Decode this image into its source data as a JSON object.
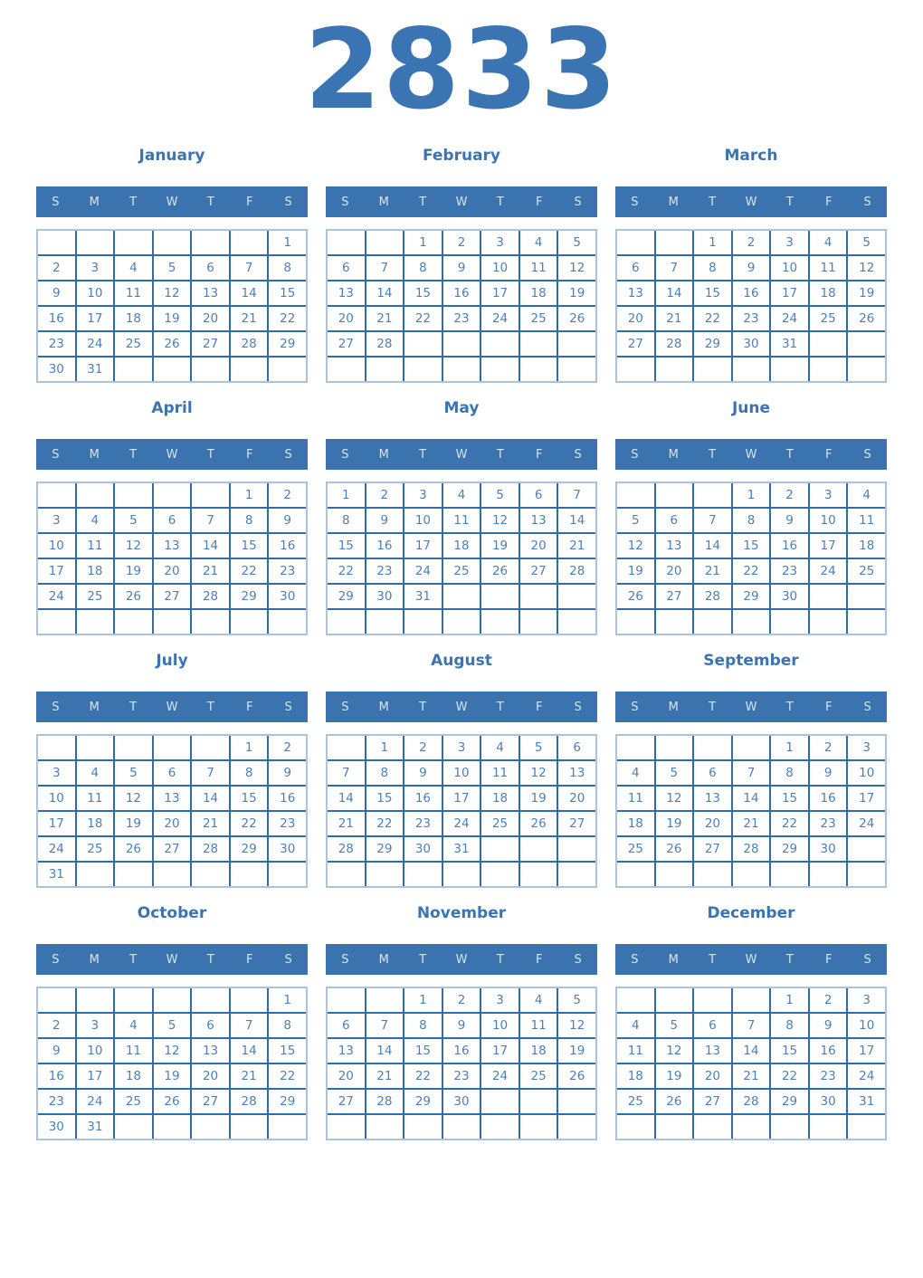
{
  "year": "2833",
  "weekday_headers": [
    "S",
    "M",
    "T",
    "W",
    "T",
    "F",
    "S"
  ],
  "colors": {
    "accent": "#3a74b2",
    "header_bg": "#3a73ad",
    "header_text": "#d9e4f1",
    "day_text": "#4c80b6",
    "grid_line": "#2f6ca8",
    "grid_outline": "#a9c4db"
  },
  "months": [
    {
      "name": "January",
      "weeks": [
        [
          "",
          "",
          "",
          "",
          "",
          "",
          "1"
        ],
        [
          "2",
          "3",
          "4",
          "5",
          "6",
          "7",
          "8"
        ],
        [
          "9",
          "10",
          "11",
          "12",
          "13",
          "14",
          "15"
        ],
        [
          "16",
          "17",
          "18",
          "19",
          "20",
          "21",
          "22"
        ],
        [
          "23",
          "24",
          "25",
          "26",
          "27",
          "28",
          "29"
        ],
        [
          "30",
          "31",
          "",
          "",
          "",
          "",
          ""
        ]
      ]
    },
    {
      "name": "February",
      "weeks": [
        [
          "",
          "",
          "1",
          "2",
          "3",
          "4",
          "5"
        ],
        [
          "6",
          "7",
          "8",
          "9",
          "10",
          "11",
          "12"
        ],
        [
          "13",
          "14",
          "15",
          "16",
          "17",
          "18",
          "19"
        ],
        [
          "20",
          "21",
          "22",
          "23",
          "24",
          "25",
          "26"
        ],
        [
          "27",
          "28",
          "",
          "",
          "",
          "",
          ""
        ],
        [
          "",
          "",
          "",
          "",
          "",
          "",
          ""
        ]
      ]
    },
    {
      "name": "March",
      "weeks": [
        [
          "",
          "",
          "1",
          "2",
          "3",
          "4",
          "5"
        ],
        [
          "6",
          "7",
          "8",
          "9",
          "10",
          "11",
          "12"
        ],
        [
          "13",
          "14",
          "15",
          "16",
          "17",
          "18",
          "19"
        ],
        [
          "20",
          "21",
          "22",
          "23",
          "24",
          "25",
          "26"
        ],
        [
          "27",
          "28",
          "29",
          "30",
          "31",
          "",
          ""
        ],
        [
          "",
          "",
          "",
          "",
          "",
          "",
          ""
        ]
      ]
    },
    {
      "name": "April",
      "weeks": [
        [
          "",
          "",
          "",
          "",
          "",
          "1",
          "2"
        ],
        [
          "3",
          "4",
          "5",
          "6",
          "7",
          "8",
          "9"
        ],
        [
          "10",
          "11",
          "12",
          "13",
          "14",
          "15",
          "16"
        ],
        [
          "17",
          "18",
          "19",
          "20",
          "21",
          "22",
          "23"
        ],
        [
          "24",
          "25",
          "26",
          "27",
          "28",
          "29",
          "30"
        ],
        [
          "",
          "",
          "",
          "",
          "",
          "",
          ""
        ]
      ]
    },
    {
      "name": "May",
      "weeks": [
        [
          "1",
          "2",
          "3",
          "4",
          "5",
          "6",
          "7"
        ],
        [
          "8",
          "9",
          "10",
          "11",
          "12",
          "13",
          "14"
        ],
        [
          "15",
          "16",
          "17",
          "18",
          "19",
          "20",
          "21"
        ],
        [
          "22",
          "23",
          "24",
          "25",
          "26",
          "27",
          "28"
        ],
        [
          "29",
          "30",
          "31",
          "",
          "",
          "",
          ""
        ],
        [
          "",
          "",
          "",
          "",
          "",
          "",
          ""
        ]
      ]
    },
    {
      "name": "June",
      "weeks": [
        [
          "",
          "",
          "",
          "1",
          "2",
          "3",
          "4"
        ],
        [
          "5",
          "6",
          "7",
          "8",
          "9",
          "10",
          "11"
        ],
        [
          "12",
          "13",
          "14",
          "15",
          "16",
          "17",
          "18"
        ],
        [
          "19",
          "20",
          "21",
          "22",
          "23",
          "24",
          "25"
        ],
        [
          "26",
          "27",
          "28",
          "29",
          "30",
          "",
          ""
        ],
        [
          "",
          "",
          "",
          "",
          "",
          "",
          ""
        ]
      ]
    },
    {
      "name": "July",
      "weeks": [
        [
          "",
          "",
          "",
          "",
          "",
          "1",
          "2"
        ],
        [
          "3",
          "4",
          "5",
          "6",
          "7",
          "8",
          "9"
        ],
        [
          "10",
          "11",
          "12",
          "13",
          "14",
          "15",
          "16"
        ],
        [
          "17",
          "18",
          "19",
          "20",
          "21",
          "22",
          "23"
        ],
        [
          "24",
          "25",
          "26",
          "27",
          "28",
          "29",
          "30"
        ],
        [
          "31",
          "",
          "",
          "",
          "",
          "",
          ""
        ]
      ]
    },
    {
      "name": "August",
      "weeks": [
        [
          "",
          "1",
          "2",
          "3",
          "4",
          "5",
          "6"
        ],
        [
          "7",
          "8",
          "9",
          "10",
          "11",
          "12",
          "13"
        ],
        [
          "14",
          "15",
          "16",
          "17",
          "18",
          "19",
          "20"
        ],
        [
          "21",
          "22",
          "23",
          "24",
          "25",
          "26",
          "27"
        ],
        [
          "28",
          "29",
          "30",
          "31",
          "",
          "",
          ""
        ],
        [
          "",
          "",
          "",
          "",
          "",
          "",
          ""
        ]
      ]
    },
    {
      "name": "September",
      "weeks": [
        [
          "",
          "",
          "",
          "",
          "1",
          "2",
          "3"
        ],
        [
          "4",
          "5",
          "6",
          "7",
          "8",
          "9",
          "10"
        ],
        [
          "11",
          "12",
          "13",
          "14",
          "15",
          "16",
          "17"
        ],
        [
          "18",
          "19",
          "20",
          "21",
          "22",
          "23",
          "24"
        ],
        [
          "25",
          "26",
          "27",
          "28",
          "29",
          "30",
          ""
        ],
        [
          "",
          "",
          "",
          "",
          "",
          "",
          ""
        ]
      ]
    },
    {
      "name": "October",
      "weeks": [
        [
          "",
          "",
          "",
          "",
          "",
          "",
          "1"
        ],
        [
          "2",
          "3",
          "4",
          "5",
          "6",
          "7",
          "8"
        ],
        [
          "9",
          "10",
          "11",
          "12",
          "13",
          "14",
          "15"
        ],
        [
          "16",
          "17",
          "18",
          "19",
          "20",
          "21",
          "22"
        ],
        [
          "23",
          "24",
          "25",
          "26",
          "27",
          "28",
          "29"
        ],
        [
          "30",
          "31",
          "",
          "",
          "",
          "",
          ""
        ]
      ]
    },
    {
      "name": "November",
      "weeks": [
        [
          "",
          "",
          "1",
          "2",
          "3",
          "4",
          "5"
        ],
        [
          "6",
          "7",
          "8",
          "9",
          "10",
          "11",
          "12"
        ],
        [
          "13",
          "14",
          "15",
          "16",
          "17",
          "18",
          "19"
        ],
        [
          "20",
          "21",
          "22",
          "23",
          "24",
          "25",
          "26"
        ],
        [
          "27",
          "28",
          "29",
          "30",
          "",
          "",
          ""
        ],
        [
          "",
          "",
          "",
          "",
          "",
          "",
          ""
        ]
      ]
    },
    {
      "name": "December",
      "weeks": [
        [
          "",
          "",
          "",
          "",
          "1",
          "2",
          "3"
        ],
        [
          "4",
          "5",
          "6",
          "7",
          "8",
          "9",
          "10"
        ],
        [
          "11",
          "12",
          "13",
          "14",
          "15",
          "16",
          "17"
        ],
        [
          "18",
          "19",
          "20",
          "21",
          "22",
          "23",
          "24"
        ],
        [
          "25",
          "26",
          "27",
          "28",
          "29",
          "30",
          "31"
        ],
        [
          "",
          "",
          "",
          "",
          "",
          "",
          ""
        ]
      ]
    }
  ]
}
